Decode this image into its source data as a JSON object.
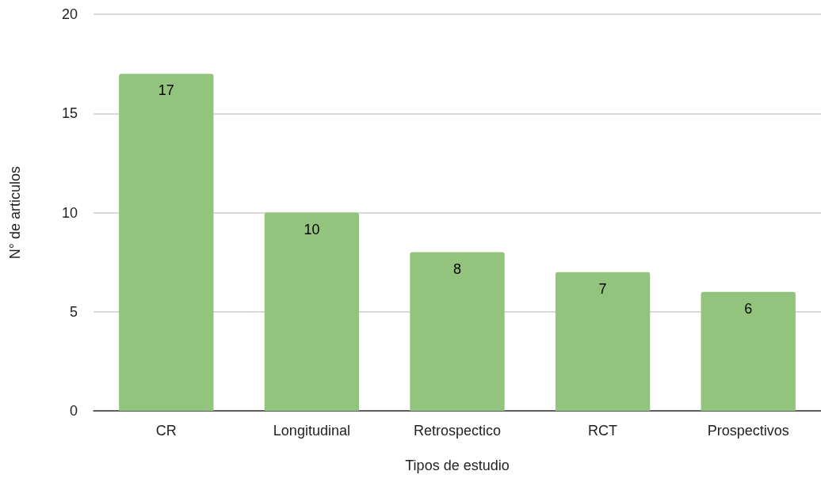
{
  "chart_data": {
    "type": "bar",
    "xlabel": "Tipos de estudio",
    "ylabel": "N° de articulos",
    "categories": [
      "CR",
      "Longitudinal",
      "Retrospectico",
      "RCT",
      "Prospectivos"
    ],
    "values": [
      17,
      10,
      8,
      7,
      6
    ],
    "color": "#93c47d",
    "ylim": [
      0,
      20
    ],
    "yticks": [
      0,
      5,
      10,
      15,
      20
    ],
    "grid": "y",
    "data_labels": true
  }
}
